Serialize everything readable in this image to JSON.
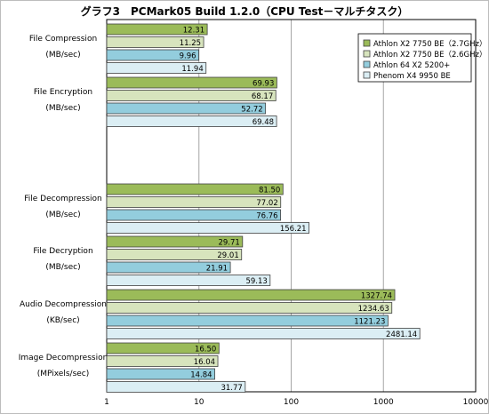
{
  "chart_data": {
    "type": "bar",
    "orientation": "horizontal",
    "title": "グラフ3　PCMark05 Build 1.2.0（CPU Test－マルチタスク）",
    "x_scale": "log",
    "xlim": [
      1,
      10000
    ],
    "x_ticks": [
      "1",
      "10",
      "100",
      "1000",
      "10000"
    ],
    "grid": true,
    "legend_position": "top-right",
    "groups": [
      {
        "label": "File Compression",
        "unit": "(MB/sec)"
      },
      {
        "label": "File Encryption",
        "unit": "(MB/sec)"
      },
      {
        "label": "",
        "unit": ""
      },
      {
        "label": "File Decompression",
        "unit": "(MB/sec)"
      },
      {
        "label": "File Decryption",
        "unit": "(MB/sec)"
      },
      {
        "label": "Audio Decompression",
        "unit": "(KB/sec)"
      },
      {
        "label": "Image Decompression",
        "unit": "(MPixels/sec)"
      }
    ],
    "series": [
      {
        "name": "Athlon X2 7750 BE（2.7GHz）",
        "color": "#9bbb59",
        "values": [
          "12.31",
          "69.93",
          null,
          "81.50",
          "29.71",
          "1327.74",
          "16.50"
        ]
      },
      {
        "name": "Athlon X2 7750 BE（2.6GHz）",
        "color": "#d7e4bd",
        "values": [
          "11.25",
          "68.17",
          null,
          "77.02",
          "29.01",
          "1234.63",
          "16.04"
        ]
      },
      {
        "name": "Athlon 64 X2 5200+",
        "color": "#93cddd",
        "values": [
          "9.96",
          "52.72",
          null,
          "76.76",
          "21.91",
          "1121.23",
          "14.84"
        ]
      },
      {
        "name": "Phenom X4 9950 BE",
        "color": "#dbeef4",
        "values": [
          "11.94",
          "69.48",
          null,
          "156.21",
          "59.13",
          "2481.14",
          "31.77"
        ]
      }
    ]
  },
  "colors": {
    "bar_stroke": "#404040",
    "grid": "#a6a6a6",
    "axis": "#000000"
  }
}
